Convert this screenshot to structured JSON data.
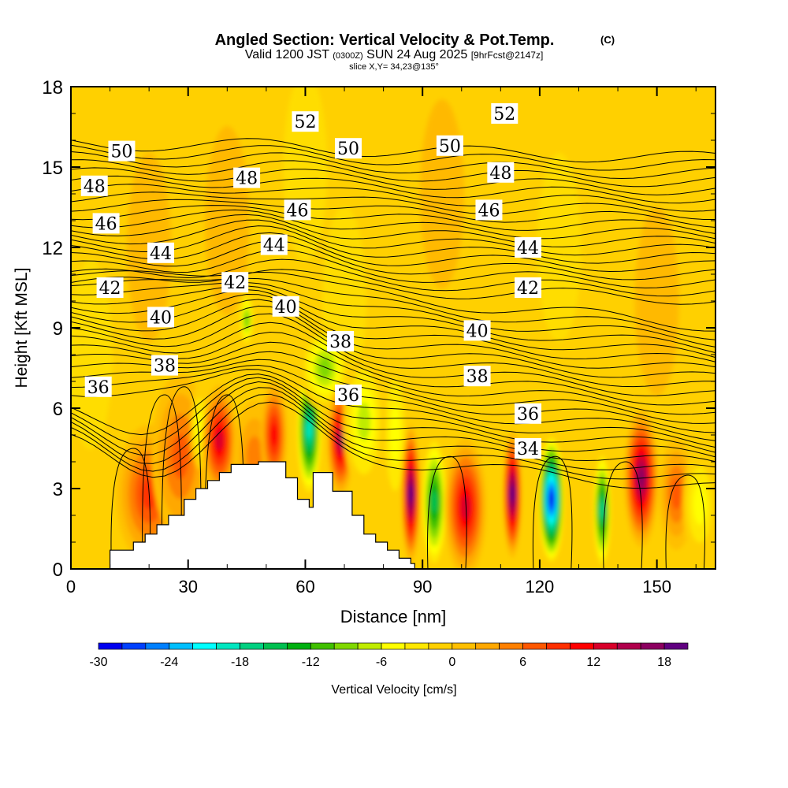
{
  "chart_data": {
    "type": "heatmap",
    "title": "Angled Section: Vertical Velocity & Pot.Temp.",
    "title_units": "(C)",
    "subtitle": {
      "valid": "Valid 1200 JST",
      "utc": "(0300Z)",
      "date": "SUN 24 Aug 2025",
      "forecast": "[9hrFcst@2147z]"
    },
    "slice_label": "slice X,Y= 34,23@135°",
    "xlabel": "Distance [nm]",
    "ylabel": "Height [Kft MSL]",
    "xlim": [
      0,
      165
    ],
    "ylim": [
      0,
      18
    ],
    "x_ticks": [
      0,
      30,
      60,
      90,
      120,
      150
    ],
    "y_ticks": [
      0,
      3,
      6,
      9,
      12,
      15,
      18
    ],
    "colorbar": {
      "label": "Vertical Velocity [cm/s]",
      "range": [
        -30,
        20
      ],
      "step": 2,
      "tick_values": [
        -30,
        -24,
        -18,
        -12,
        -6,
        0,
        6,
        12,
        18
      ],
      "colors": [
        "#0000f0",
        "#0040ff",
        "#0080ff",
        "#00bfff",
        "#00ffff",
        "#00e6c0",
        "#00d080",
        "#00c050",
        "#00b010",
        "#40c000",
        "#80d800",
        "#c0ec00",
        "#ffff00",
        "#ffe800",
        "#ffd000",
        "#ffbf00",
        "#ffa800",
        "#ff8000",
        "#ff5800",
        "#ff3000",
        "#ff0000",
        "#d8002a",
        "#b0004c",
        "#8c0060",
        "#600080"
      ]
    },
    "terrain_profile_kft": {
      "distance_nm": [
        0,
        10,
        10,
        16,
        16,
        19,
        19,
        22,
        22,
        25,
        25,
        29,
        29,
        32,
        32,
        35,
        35,
        38,
        38,
        41,
        41,
        44,
        44,
        48,
        48,
        55,
        55,
        58,
        58,
        61,
        61,
        62,
        62,
        67,
        67,
        72,
        72,
        75,
        75,
        78,
        78,
        81,
        81,
        84,
        84,
        87,
        87,
        88,
        88
      ],
      "height": [
        0,
        0,
        0.7,
        0.7,
        1.0,
        1.0,
        1.3,
        1.3,
        1.65,
        1.65,
        2.0,
        2.0,
        2.6,
        2.6,
        3.0,
        3.0,
        3.3,
        3.3,
        3.6,
        3.6,
        3.9,
        3.9,
        3.9,
        3.9,
        4.0,
        4.0,
        3.4,
        3.4,
        2.6,
        2.6,
        2.3,
        2.3,
        3.6,
        3.6,
        2.9,
        2.9,
        2.0,
        2.0,
        1.3,
        1.3,
        1.0,
        1.0,
        0.7,
        0.7,
        0.4,
        0.4,
        0.2,
        0.2,
        0
      ]
    },
    "vertical_velocity_cells": [
      {
        "x": 20,
        "y": 2.8,
        "value": 8,
        "wx": 8,
        "wy": 2.5
      },
      {
        "x": 28,
        "y": 4.2,
        "value": 6,
        "wx": 7,
        "wy": 3
      },
      {
        "x": 33,
        "y": 5.3,
        "value": -4,
        "wx": 2,
        "wy": 1.5
      },
      {
        "x": 38,
        "y": 4.8,
        "value": 12,
        "wx": 4,
        "wy": 2
      },
      {
        "x": 47,
        "y": 4.2,
        "value": 4,
        "wx": 5,
        "wy": 2
      },
      {
        "x": 52,
        "y": 5.0,
        "value": 10,
        "wx": 3,
        "wy": 2
      },
      {
        "x": 61,
        "y": 5.2,
        "value": -18,
        "wx": 3,
        "wy": 2.5
      },
      {
        "x": 65,
        "y": 7.5,
        "value": -8,
        "wx": 6,
        "wy": 1.5
      },
      {
        "x": 69,
        "y": 4.8,
        "value": 14,
        "wx": 3,
        "wy": 2
      },
      {
        "x": 45,
        "y": 9.3,
        "value": -8,
        "wx": 1.5,
        "wy": 1
      },
      {
        "x": 75,
        "y": 5.5,
        "value": -6,
        "wx": 5,
        "wy": 2.5
      },
      {
        "x": 83,
        "y": 5.0,
        "value": -4,
        "wx": 3,
        "wy": 3
      },
      {
        "x": 87,
        "y": 2.8,
        "value": 18,
        "wx": 2,
        "wy": 2.5
      },
      {
        "x": 93,
        "y": 2.5,
        "value": -14,
        "wx": 3,
        "wy": 2.5
      },
      {
        "x": 101,
        "y": 2.3,
        "value": 12,
        "wx": 5,
        "wy": 2.5
      },
      {
        "x": 113,
        "y": 2.8,
        "value": 18,
        "wx": 2,
        "wy": 2.3
      },
      {
        "x": 123,
        "y": 2.6,
        "value": -28,
        "wx": 3,
        "wy": 2.4
      },
      {
        "x": 136,
        "y": 2.2,
        "value": -16,
        "wx": 2,
        "wy": 2.2
      },
      {
        "x": 146,
        "y": 3.4,
        "value": 16,
        "wx": 4,
        "wy": 2.5
      },
      {
        "x": 155,
        "y": 2.8,
        "value": 6,
        "wx": 4,
        "wy": 2
      },
      {
        "x": 161,
        "y": 2.4,
        "value": -4,
        "wx": 4,
        "wy": 2
      }
    ],
    "pot_temp_contours": {
      "levels": [
        34,
        36,
        38,
        40,
        42,
        44,
        46,
        48,
        50,
        52
      ],
      "labels": [
        {
          "text": "52",
          "x": 60,
          "y": 16.7
        },
        {
          "text": "52",
          "x": 111,
          "y": 17.0
        },
        {
          "text": "50",
          "x": 13,
          "y": 15.6
        },
        {
          "text": "50",
          "x": 71,
          "y": 15.7
        },
        {
          "text": "50",
          "x": 97,
          "y": 15.8
        },
        {
          "text": "48",
          "x": 6,
          "y": 14.3
        },
        {
          "text": "48",
          "x": 45,
          "y": 14.6
        },
        {
          "text": "48",
          "x": 110,
          "y": 14.8
        },
        {
          "text": "46",
          "x": 9,
          "y": 12.9
        },
        {
          "text": "46",
          "x": 58,
          "y": 13.4
        },
        {
          "text": "46",
          "x": 107,
          "y": 13.4
        },
        {
          "text": "44",
          "x": 23,
          "y": 11.8
        },
        {
          "text": "44",
          "x": 52,
          "y": 12.1
        },
        {
          "text": "44",
          "x": 117,
          "y": 12.0
        },
        {
          "text": "42",
          "x": 10,
          "y": 10.5
        },
        {
          "text": "42",
          "x": 42,
          "y": 10.7
        },
        {
          "text": "42",
          "x": 117,
          "y": 10.5
        },
        {
          "text": "40",
          "x": 23,
          "y": 9.4
        },
        {
          "text": "40",
          "x": 55,
          "y": 9.8
        },
        {
          "text": "40",
          "x": 104,
          "y": 8.9
        },
        {
          "text": "38",
          "x": 24,
          "y": 7.6
        },
        {
          "text": "38",
          "x": 69,
          "y": 8.5
        },
        {
          "text": "38",
          "x": 104,
          "y": 7.2
        },
        {
          "text": "36",
          "x": 7,
          "y": 6.8
        },
        {
          "text": "36",
          "x": 71,
          "y": 6.5
        },
        {
          "text": "36",
          "x": 117,
          "y": 5.8
        },
        {
          "text": "34",
          "x": 117,
          "y": 4.5
        }
      ]
    }
  }
}
